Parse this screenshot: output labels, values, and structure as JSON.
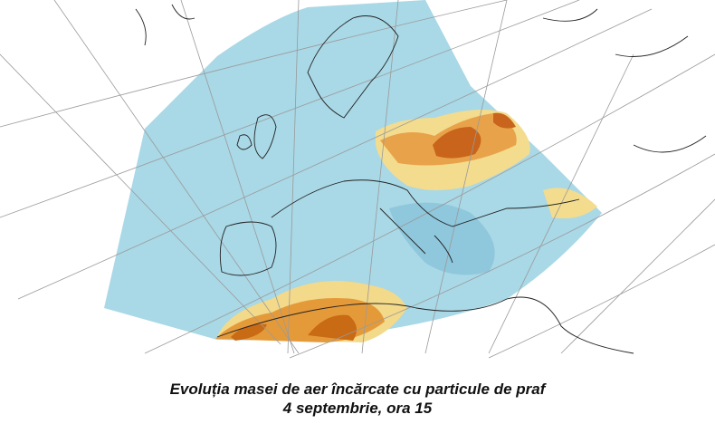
{
  "caption": {
    "line1": "Evoluția masei de aer încărcate cu particule de praf",
    "line2": "4 septembrie, ora 15"
  }
}
